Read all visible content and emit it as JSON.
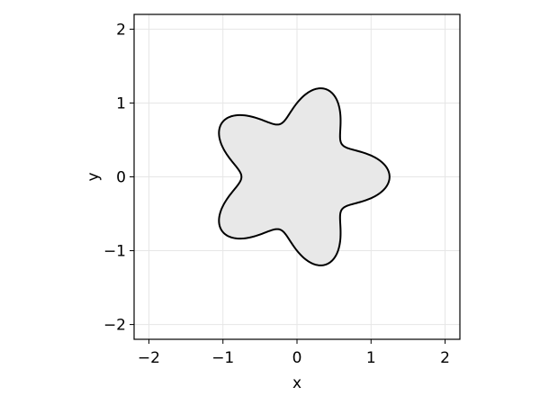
{
  "chart_data": {
    "type": "area",
    "title": "",
    "xlabel": "x",
    "ylabel": "y",
    "xlim": [
      -2.2,
      2.2
    ],
    "ylim": [
      -2.2,
      2.2
    ],
    "xticks": [
      -2,
      -1,
      0,
      1,
      2
    ],
    "yticks": [
      -2,
      -1,
      0,
      1,
      2
    ],
    "xtick_labels": [
      "−2",
      "−1",
      "0",
      "1",
      "2"
    ],
    "ytick_labels": [
      "−2",
      "−1",
      "0",
      "1",
      "2"
    ],
    "grid": true,
    "shape": {
      "kind": "polar-curve",
      "equation": "r = 1 + 0.25*cos(5*theta)",
      "base_radius": 1.0,
      "amplitude": 0.25,
      "lobes": 5,
      "fill_color": "#e8e8e8",
      "stroke_color": "#000000"
    },
    "colors": {
      "grid": "#e6e6e6",
      "frame": "#000000",
      "background": "#ffffff"
    }
  }
}
